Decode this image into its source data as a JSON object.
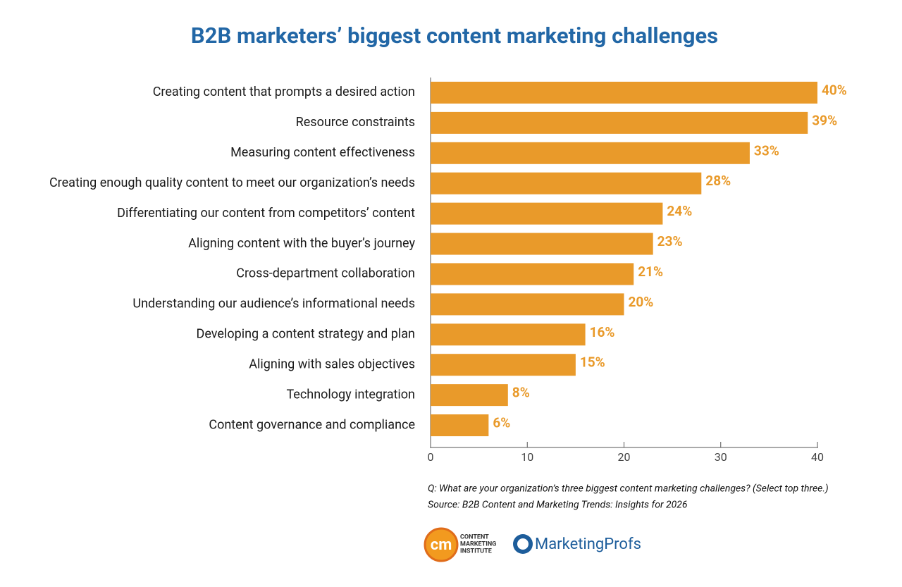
{
  "chart_data": {
    "type": "bar",
    "orientation": "horizontal",
    "title": "B2B marketers’ biggest content marketing challenges",
    "categories": [
      "Creating content that prompts a desired action",
      "Resource constraints",
      "Measuring content effectiveness",
      "Creating enough quality content to meet our organization’s needs",
      "Differentiating our content from competitors’ content",
      "Aligning content with the buyer’s journey",
      "Cross-department collaboration",
      "Understanding our audience’s informational needs",
      "Developing a content strategy and plan",
      "Aligning with sales objectives",
      "Technology integration",
      "Content governance and compliance"
    ],
    "values": [
      40,
      39,
      33,
      28,
      24,
      23,
      21,
      20,
      16,
      15,
      8,
      6
    ],
    "value_labels": [
      "40%",
      "39%",
      "33%",
      "28%",
      "24%",
      "23%",
      "21%",
      "20%",
      "16%",
      "15%",
      "8%",
      "6%"
    ],
    "color": "#e99a2a",
    "xlim": [
      0,
      40
    ],
    "xticks": [
      0,
      10,
      20,
      30,
      40
    ],
    "notes": [
      "Q: What are your organization’s three biggest content marketing challenges? (Select top three.)",
      "Source: B2B Content and Marketing Trends: Insights for 2026"
    ],
    "logos": [
      "cm",
      "CONTENT",
      "MARKETING",
      "INSTITUTE",
      "MarketingProfs"
    ]
  }
}
